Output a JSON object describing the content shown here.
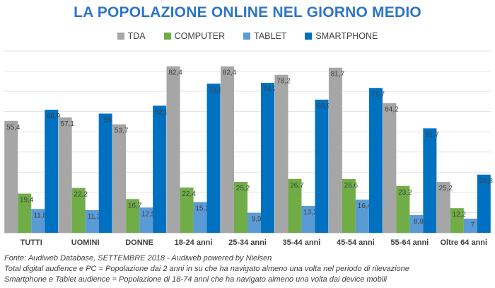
{
  "chart_data": {
    "type": "bar",
    "title": "LA POPOLAZIONE ONLINE NEL GIORNO MEDIO",
    "categories": [
      "TUTTI",
      "UOMINI",
      "DONNE",
      "18-24 anni",
      "25-34 anni",
      "35-44 anni",
      "45-54 anni",
      "55-64 anni",
      "Oltre 64 anni"
    ],
    "series": [
      {
        "name": "TDA",
        "color": "#a6a6a6",
        "values": [
          55.4,
          57.1,
          53.7,
          82.4,
          82.4,
          78.2,
          81.7,
          64.2,
          25.2
        ]
      },
      {
        "name": "COMPUTER",
        "color": "#70ad47",
        "values": [
          19.4,
          22.2,
          16.7,
          22.4,
          25.2,
          26.7,
          26.6,
          23.2,
          12.2
        ]
      },
      {
        "name": "TABLET",
        "color": "#5b9bd5",
        "values": [
          11.8,
          11.2,
          12.5,
          15.2,
          9.9,
          13.3,
          16.4,
          8.8,
          7
        ]
      },
      {
        "name": "SMARTPHONE",
        "color": "#0070c0",
        "values": [
          60.9,
          59,
          62.9,
          73.8,
          74.2,
          65.9,
          71.7,
          51.7,
          28.8
        ]
      }
    ],
    "value_labels": [
      [
        "55,4",
        "57,1",
        "53,7",
        "82,4",
        "82,4",
        "78,2",
        "81,7",
        "64,2",
        "25,2"
      ],
      [
        "19,4",
        "22,2",
        "16,7",
        "22,4",
        "25,2",
        "26,7",
        "26,6",
        "23,2",
        "12,2"
      ],
      [
        "11,8",
        "11,2",
        "12,5",
        "15,2",
        "9,9",
        "13,3",
        "16,4",
        "8,8",
        "7"
      ],
      [
        "60,9",
        "59",
        "62,9",
        "73,8",
        "74,2",
        "65,9",
        "71,7",
        "51,7",
        "28,8"
      ]
    ],
    "ylim": [
      0,
      90
    ],
    "grid": true,
    "legend_position": "top-center"
  },
  "notes": [
    "Fonte: Audiweb Database, SETTEMBRE 2018 - Audiweb powered by Nielsen",
    "Total digital audience e PC = Popolazione dai 2 anni in su che ha navigato almeno una volta nel periodo di rilevazione",
    "Smartphone e Tablet audience = Popolazione di 18-74 anni che ha navigato almeno una volta dai device mobili"
  ]
}
